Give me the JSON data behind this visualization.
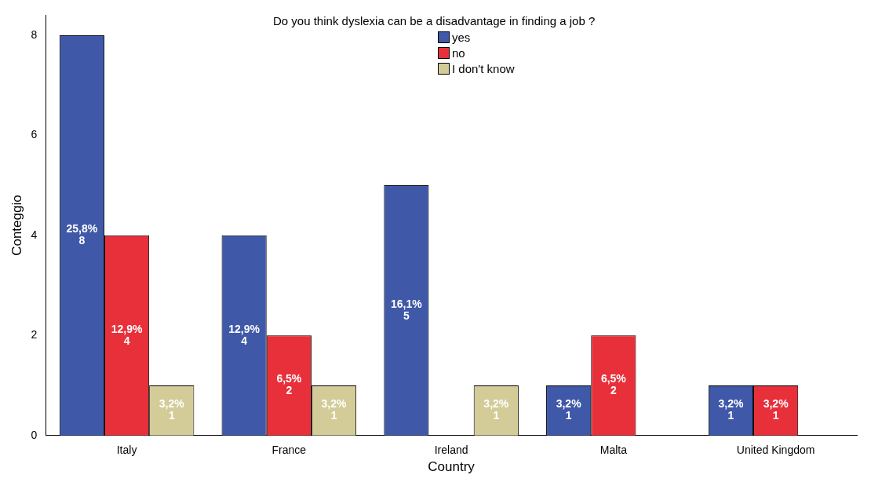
{
  "chart_data": {
    "type": "bar",
    "legend_title": "Do you think dyslexia can be a disadvantage in finding a job ?",
    "xlabel": "Country",
    "ylabel": "Conteggio",
    "categories": [
      "Italy",
      "France",
      "Ireland",
      "Malta",
      "United Kingdom"
    ],
    "series": [
      {
        "name": "yes",
        "color": "#3f58a8",
        "values": [
          8,
          4,
          5,
          1,
          1
        ],
        "value_labels": [
          "25,8%\n8",
          "12,9%\n4",
          "16,1%\n5",
          "3,2%\n1",
          "3,2%\n1"
        ]
      },
      {
        "name": "no",
        "color": "#e8303a",
        "values": [
          4,
          2,
          null,
          2,
          1
        ],
        "value_labels": [
          "12,9%\n4",
          "6,5%\n2",
          null,
          "6,5%\n2",
          "3,2%\n1"
        ]
      },
      {
        "name": "I don't know",
        "color": "#d3cc98",
        "values": [
          1,
          1,
          1,
          null,
          null
        ],
        "value_labels": [
          "3,2%\n1",
          "3,2%\n1",
          "3,2%\n1",
          null,
          null
        ]
      }
    ],
    "ylim": [
      0,
      8.4
    ],
    "yticks": [
      0,
      2,
      4,
      6,
      8
    ],
    "grid": false,
    "legend": "top"
  }
}
